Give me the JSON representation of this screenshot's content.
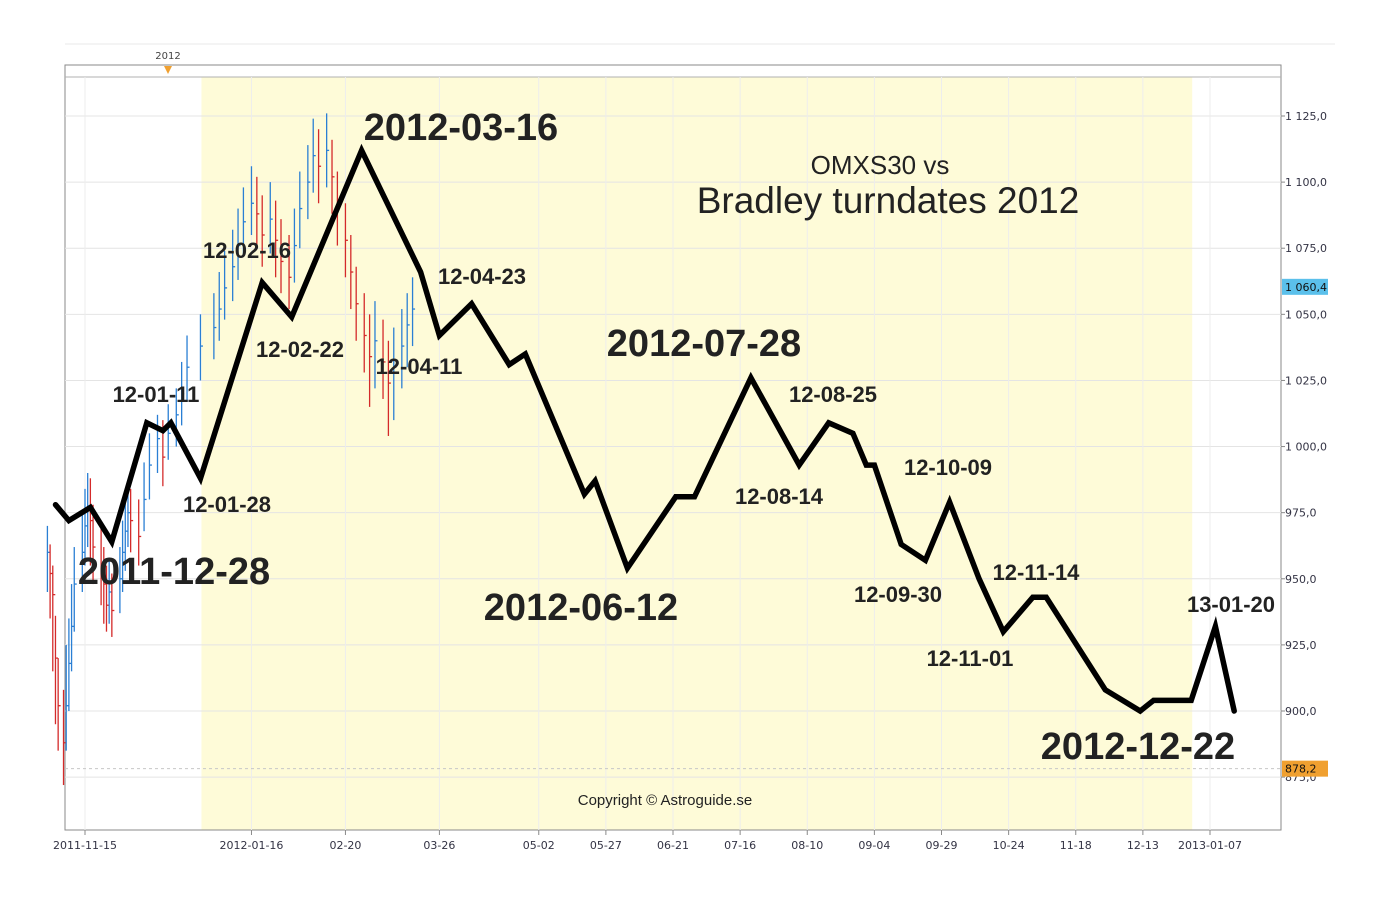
{
  "chart_data": {
    "type": "line",
    "title": "OMXS30 vs",
    "subtitle": "Bradley turndates 2012",
    "copyright": "Copyright © Astroguide.se",
    "year_marker": "2012",
    "ylim": [
      861,
      1140
    ],
    "y_ticks": [
      {
        "value": 875,
        "label": "875,0"
      },
      {
        "value": 900,
        "label": "900,0"
      },
      {
        "value": 925,
        "label": "925,0"
      },
      {
        "value": 950,
        "label": "950,0"
      },
      {
        "value": 975,
        "label": "975,0"
      },
      {
        "value": 1000,
        "label": "1 000,0"
      },
      {
        "value": 1025,
        "label": "1 025,0"
      },
      {
        "value": 1050,
        "label": "1 050,0"
      },
      {
        "value": 1075,
        "label": "1 075,0"
      },
      {
        "value": 1100,
        "label": "1 100,0"
      },
      {
        "value": 1125,
        "label": "1 125,0"
      }
    ],
    "x_ticks": [
      "2011-11-15",
      "2012-01-16",
      "02-20",
      "03-26",
      "05-02",
      "05-27",
      "06-21",
      "07-16",
      "08-10",
      "09-04",
      "09-29",
      "10-24",
      "11-18",
      "12-13",
      "2013-01-07"
    ],
    "price_tags": [
      {
        "value": 1060.4,
        "label": "1 060,4",
        "color": "#5bc0eb"
      },
      {
        "value": 878.2,
        "label": "878,2",
        "color": "#f0a030"
      }
    ],
    "highlight_color": "#fefbd8",
    "bradley_series": {
      "name": "Bradley",
      "color": "#000000",
      "points": [
        {
          "x": "2011-11-04",
          "y": 978
        },
        {
          "x": "2011-11-09",
          "y": 972
        },
        {
          "x": "2011-11-17",
          "y": 977
        },
        {
          "x": "2011-11-25",
          "y": 964
        },
        {
          "x": "2011-12-08",
          "y": 1009
        },
        {
          "x": "2011-12-14",
          "y": 1006
        },
        {
          "x": "2011-12-17",
          "y": 1009
        },
        {
          "x": "2011-12-28",
          "y": 988
        },
        {
          "x": "2012-01-20",
          "y": 1062
        },
        {
          "x": "2012-01-31",
          "y": 1049
        },
        {
          "x": "2012-02-26",
          "y": 1112
        },
        {
          "x": "2012-03-19",
          "y": 1066
        },
        {
          "x": "2012-03-26",
          "y": 1042
        },
        {
          "x": "2012-04-07",
          "y": 1054
        },
        {
          "x": "2012-04-21",
          "y": 1031
        },
        {
          "x": "2012-04-27",
          "y": 1035
        },
        {
          "x": "2012-05-19",
          "y": 982
        },
        {
          "x": "2012-05-23",
          "y": 987
        },
        {
          "x": "2012-06-04",
          "y": 954
        },
        {
          "x": "2012-06-22",
          "y": 981
        },
        {
          "x": "2012-06-29",
          "y": 981
        },
        {
          "x": "2012-07-20",
          "y": 1026
        },
        {
          "x": "2012-08-07",
          "y": 993
        },
        {
          "x": "2012-08-18",
          "y": 1009
        },
        {
          "x": "2012-08-27",
          "y": 1005
        },
        {
          "x": "2012-09-01",
          "y": 993
        },
        {
          "x": "2012-09-04",
          "y": 993
        },
        {
          "x": "2012-09-14",
          "y": 963
        },
        {
          "x": "2012-09-23",
          "y": 957
        },
        {
          "x": "2012-10-02",
          "y": 979
        },
        {
          "x": "2012-10-13",
          "y": 950
        },
        {
          "x": "2012-10-22",
          "y": 930
        },
        {
          "x": "2012-11-02",
          "y": 943
        },
        {
          "x": "2012-11-07",
          "y": 943
        },
        {
          "x": "2012-11-29",
          "y": 908
        },
        {
          "x": "2012-12-12",
          "y": 900
        },
        {
          "x": "2012-12-17",
          "y": 904
        },
        {
          "x": "2012-12-31",
          "y": 904
        },
        {
          "x": "2013-01-09",
          "y": 932
        },
        {
          "x": "2013-01-16",
          "y": 900
        }
      ]
    },
    "ohlc_series": {
      "name": "OMXS30",
      "up_color": "#2a7fd4",
      "down_color": "#d42a2a",
      "bars": [
        {
          "x": "2011-11-01",
          "y": 960,
          "low": 945,
          "high": 970
        },
        {
          "x": "2011-11-02",
          "y": 952,
          "low": 935,
          "high": 963
        },
        {
          "x": "2011-11-03",
          "y": 944,
          "low": 915,
          "high": 955
        },
        {
          "x": "2011-11-04",
          "y": 920,
          "low": 895,
          "high": 936
        },
        {
          "x": "2011-11-05",
          "y": 902,
          "low": 885,
          "high": 920
        },
        {
          "x": "2011-11-07",
          "y": 888,
          "low": 872,
          "high": 908
        },
        {
          "x": "2011-11-08",
          "y": 902,
          "low": 885,
          "high": 925
        },
        {
          "x": "2011-11-09",
          "y": 918,
          "low": 900,
          "high": 935
        },
        {
          "x": "2011-11-10",
          "y": 932,
          "low": 915,
          "high": 948
        },
        {
          "x": "2011-11-11",
          "y": 948,
          "low": 930,
          "high": 962
        },
        {
          "x": "2011-11-14",
          "y": 960,
          "low": 945,
          "high": 975
        },
        {
          "x": "2011-11-15",
          "y": 970,
          "low": 955,
          "high": 984
        },
        {
          "x": "2011-11-16",
          "y": 977,
          "low": 962,
          "high": 990
        },
        {
          "x": "2011-11-17",
          "y": 972,
          "low": 955,
          "high": 988
        },
        {
          "x": "2011-11-18",
          "y": 962,
          "low": 948,
          "high": 978
        },
        {
          "x": "2011-11-21",
          "y": 955,
          "low": 940,
          "high": 970
        },
        {
          "x": "2011-11-22",
          "y": 948,
          "low": 933,
          "high": 962
        },
        {
          "x": "2011-11-23",
          "y": 940,
          "low": 930,
          "high": 955
        },
        {
          "x": "2011-11-24",
          "y": 945,
          "low": 933,
          "high": 958
        },
        {
          "x": "2011-11-25",
          "y": 938,
          "low": 928,
          "high": 952
        },
        {
          "x": "2011-11-28",
          "y": 950,
          "low": 937,
          "high": 962
        },
        {
          "x": "2011-11-29",
          "y": 960,
          "low": 945,
          "high": 972
        },
        {
          "x": "2011-11-30",
          "y": 968,
          "low": 953,
          "high": 980
        },
        {
          "x": "2011-12-01",
          "y": 975,
          "low": 962,
          "high": 986
        },
        {
          "x": "2011-12-02",
          "y": 972,
          "low": 960,
          "high": 984
        },
        {
          "x": "2011-12-05",
          "y": 966,
          "low": 955,
          "high": 980
        },
        {
          "x": "2011-12-07",
          "y": 980,
          "low": 968,
          "high": 994
        },
        {
          "x": "2011-12-09",
          "y": 993,
          "low": 980,
          "high": 1005
        },
        {
          "x": "2011-12-12",
          "y": 1003,
          "low": 990,
          "high": 1012
        },
        {
          "x": "2011-12-14",
          "y": 996,
          "low": 985,
          "high": 1010
        },
        {
          "x": "2011-12-16",
          "y": 1005,
          "low": 995,
          "high": 1016
        },
        {
          "x": "2011-12-19",
          "y": 1012,
          "low": 1000,
          "high": 1022
        },
        {
          "x": "2011-12-21",
          "y": 1020,
          "low": 1008,
          "high": 1032
        },
        {
          "x": "2011-12-23",
          "y": 1030,
          "low": 1017,
          "high": 1042
        },
        {
          "x": "2011-12-28",
          "y": 1038,
          "low": 1025,
          "high": 1050
        },
        {
          "x": "2012-01-02",
          "y": 1045,
          "low": 1033,
          "high": 1058
        },
        {
          "x": "2012-01-04",
          "y": 1052,
          "low": 1040,
          "high": 1066
        },
        {
          "x": "2012-01-06",
          "y": 1060,
          "low": 1048,
          "high": 1074
        },
        {
          "x": "2012-01-09",
          "y": 1068,
          "low": 1055,
          "high": 1082
        },
        {
          "x": "2012-01-11",
          "y": 1076,
          "low": 1063,
          "high": 1090
        },
        {
          "x": "2012-01-13",
          "y": 1085,
          "low": 1072,
          "high": 1098
        },
        {
          "x": "2012-01-16",
          "y": 1092,
          "low": 1080,
          "high": 1106
        },
        {
          "x": "2012-01-18",
          "y": 1088,
          "low": 1075,
          "high": 1102
        },
        {
          "x": "2012-01-20",
          "y": 1080,
          "low": 1068,
          "high": 1095
        },
        {
          "x": "2012-01-23",
          "y": 1086,
          "low": 1073,
          "high": 1100
        },
        {
          "x": "2012-01-25",
          "y": 1078,
          "low": 1064,
          "high": 1093
        },
        {
          "x": "2012-01-27",
          "y": 1070,
          "low": 1058,
          "high": 1086
        },
        {
          "x": "2012-01-30",
          "y": 1064,
          "low": 1052,
          "high": 1080
        },
        {
          "x": "2012-02-01",
          "y": 1076,
          "low": 1062,
          "high": 1090
        },
        {
          "x": "2012-02-03",
          "y": 1090,
          "low": 1075,
          "high": 1104
        },
        {
          "x": "2012-02-06",
          "y": 1100,
          "low": 1086,
          "high": 1114
        },
        {
          "x": "2012-02-08",
          "y": 1110,
          "low": 1096,
          "high": 1124
        },
        {
          "x": "2012-02-10",
          "y": 1106,
          "low": 1092,
          "high": 1120
        },
        {
          "x": "2012-02-13",
          "y": 1112,
          "low": 1098,
          "high": 1126
        },
        {
          "x": "2012-02-15",
          "y": 1102,
          "low": 1088,
          "high": 1116
        },
        {
          "x": "2012-02-17",
          "y": 1090,
          "low": 1076,
          "high": 1104
        },
        {
          "x": "2012-02-20",
          "y": 1078,
          "low": 1064,
          "high": 1092
        },
        {
          "x": "2012-02-22",
          "y": 1066,
          "low": 1052,
          "high": 1080
        },
        {
          "x": "2012-02-24",
          "y": 1054,
          "low": 1040,
          "high": 1068
        },
        {
          "x": "2012-02-27",
          "y": 1042,
          "low": 1028,
          "high": 1058
        },
        {
          "x": "2012-02-29",
          "y": 1034,
          "low": 1015,
          "high": 1050
        },
        {
          "x": "2012-03-02",
          "y": 1040,
          "low": 1022,
          "high": 1055
        },
        {
          "x": "2012-03-05",
          "y": 1032,
          "low": 1018,
          "high": 1048
        },
        {
          "x": "2012-03-07",
          "y": 1024,
          "low": 1004,
          "high": 1040
        },
        {
          "x": "2012-03-09",
          "y": 1030,
          "low": 1010,
          "high": 1045
        },
        {
          "x": "2012-03-12",
          "y": 1038,
          "low": 1022,
          "high": 1052
        },
        {
          "x": "2012-03-14",
          "y": 1046,
          "low": 1030,
          "high": 1058
        },
        {
          "x": "2012-03-16",
          "y": 1052,
          "low": 1038,
          "high": 1064
        }
      ]
    },
    "annotations": [
      {
        "text": "2011-12-28",
        "size": "big"
      },
      {
        "text": "12-01-11",
        "size": "small"
      },
      {
        "text": "12-01-28",
        "size": "small"
      },
      {
        "text": "12-02-16",
        "size": "small"
      },
      {
        "text": "12-02-22",
        "size": "small"
      },
      {
        "text": "2012-03-16",
        "size": "big"
      },
      {
        "text": "12-04-11",
        "size": "small"
      },
      {
        "text": "12-04-23",
        "size": "small"
      },
      {
        "text": "2012-06-12",
        "size": "big"
      },
      {
        "text": "2012-07-28",
        "size": "big"
      },
      {
        "text": "12-08-14",
        "size": "small"
      },
      {
        "text": "12-08-25",
        "size": "small"
      },
      {
        "text": "12-09-30",
        "size": "small"
      },
      {
        "text": "12-10-09",
        "size": "small"
      },
      {
        "text": "12-11-01",
        "size": "small"
      },
      {
        "text": "12-11-14",
        "size": "small"
      },
      {
        "text": "2012-12-22",
        "size": "big"
      },
      {
        "text": "13-01-20",
        "size": "small"
      }
    ]
  }
}
